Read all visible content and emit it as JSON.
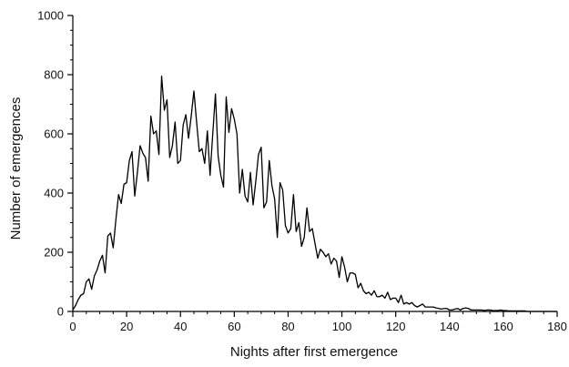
{
  "chart_data": {
    "type": "line",
    "xlabel": "Nights after first emergence",
    "ylabel": "Number of emergences",
    "xlim": [
      0,
      180
    ],
    "ylim": [
      0,
      1000
    ],
    "x_ticks": [
      0,
      20,
      40,
      60,
      80,
      100,
      120,
      140,
      160,
      180
    ],
    "y_ticks": [
      0,
      200,
      400,
      600,
      800,
      1000
    ],
    "x_tick_labels": [
      "0",
      "20",
      "40",
      "60",
      "80",
      "100",
      "120",
      "140",
      "160",
      "180"
    ],
    "y_tick_labels": [
      "0",
      "200",
      "400",
      "600",
      "800",
      "1000"
    ],
    "x_minor_step": 5,
    "y_minor_step": 50,
    "grid": false,
    "series": [
      {
        "color": "#000000",
        "x": [
          0,
          1,
          2,
          3,
          4,
          5,
          6,
          7,
          8,
          9,
          10,
          11,
          12,
          13,
          14,
          15,
          16,
          17,
          18,
          19,
          20,
          21,
          22,
          23,
          24,
          25,
          26,
          27,
          28,
          29,
          30,
          31,
          32,
          33,
          34,
          35,
          36,
          37,
          38,
          39,
          40,
          41,
          42,
          43,
          44,
          45,
          46,
          47,
          48,
          49,
          50,
          51,
          52,
          53,
          54,
          55,
          56,
          57,
          58,
          59,
          60,
          61,
          62,
          63,
          64,
          65,
          66,
          67,
          68,
          69,
          70,
          71,
          72,
          73,
          74,
          75,
          76,
          77,
          78,
          79,
          80,
          81,
          82,
          83,
          84,
          85,
          86,
          87,
          88,
          89,
          90,
          91,
          92,
          93,
          94,
          95,
          96,
          97,
          98,
          99,
          100,
          101,
          102,
          103,
          104,
          105,
          106,
          107,
          108,
          109,
          110,
          111,
          112,
          113,
          114,
          115,
          116,
          117,
          118,
          119,
          120,
          121,
          122,
          123,
          124,
          125,
          126,
          127,
          128,
          129,
          130,
          131,
          132,
          133,
          134,
          135,
          136,
          137,
          138,
          139,
          140,
          141,
          142,
          143,
          144,
          145,
          146,
          147,
          148,
          149,
          150,
          151,
          152,
          153,
          154,
          155,
          156,
          157,
          158,
          159,
          160,
          161,
          162,
          163,
          164,
          165,
          166,
          167,
          168,
          169,
          170,
          171,
          172,
          173,
          174,
          175,
          176,
          177,
          178,
          179,
          180
        ],
        "y": [
          5,
          20,
          40,
          55,
          60,
          100,
          110,
          75,
          120,
          140,
          170,
          190,
          130,
          255,
          265,
          215,
          310,
          395,
          365,
          430,
          435,
          510,
          540,
          390,
          470,
          560,
          535,
          520,
          440,
          660,
          600,
          610,
          530,
          795,
          680,
          715,
          520,
          560,
          640,
          500,
          510,
          630,
          665,
          585,
          660,
          745,
          640,
          540,
          550,
          500,
          610,
          460,
          600,
          735,
          525,
          460,
          420,
          725,
          605,
          685,
          650,
          600,
          400,
          480,
          390,
          370,
          470,
          360,
          440,
          530,
          555,
          350,
          370,
          510,
          425,
          380,
          250,
          435,
          410,
          290,
          265,
          280,
          395,
          270,
          300,
          220,
          250,
          350,
          270,
          280,
          230,
          180,
          210,
          200,
          185,
          195,
          160,
          180,
          170,
          115,
          185,
          150,
          100,
          130,
          130,
          125,
          80,
          95,
          70,
          60,
          65,
          55,
          70,
          50,
          50,
          55,
          45,
          65,
          40,
          45,
          45,
          30,
          55,
          25,
          30,
          25,
          30,
          20,
          15,
          20,
          25,
          15,
          15,
          15,
          15,
          12,
          10,
          8,
          10,
          10,
          5,
          5,
          8,
          10,
          5,
          10,
          12,
          10,
          5,
          5,
          5,
          5,
          5,
          3,
          5,
          5,
          3,
          3,
          3,
          5,
          3,
          3,
          2,
          2,
          2,
          2,
          2,
          2,
          2,
          0,
          0,
          0,
          0,
          0,
          0,
          0,
          0,
          0,
          0,
          0,
          0
        ]
      }
    ]
  }
}
